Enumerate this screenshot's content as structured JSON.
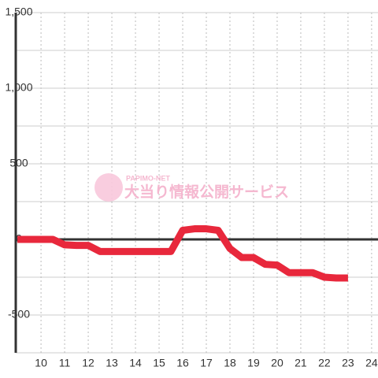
{
  "chart_data": {
    "type": "line",
    "watermark": {
      "brand": "PAPIMO-NET",
      "text": "大当り情報公開サービス"
    },
    "x": [
      9,
      9.5,
      10,
      10.5,
      11,
      11.5,
      12,
      12.5,
      13,
      13.5,
      14,
      14.5,
      15,
      15.5,
      16,
      16.5,
      17,
      17.5,
      18,
      18.5,
      19,
      19.5,
      20,
      20.5,
      21,
      21.5,
      22,
      22.5,
      23
    ],
    "series": [
      {
        "color": "#e8283c",
        "values": [
          0,
          0,
          0,
          0,
          -36,
          -40,
          -40,
          -80,
          -80,
          -80,
          -80,
          -80,
          -80,
          -80,
          60,
          70,
          70,
          60,
          -60,
          -120,
          -120,
          -165,
          -170,
          -220,
          -220,
          -220,
          -250,
          -255,
          -255
        ]
      }
    ],
    "xlim": [
      8.93,
      24.27
    ],
    "xticks": [
      10,
      11,
      12,
      13,
      14,
      15,
      16,
      17,
      18,
      19,
      20,
      21,
      22,
      23,
      24
    ],
    "ylim": [
      -750,
      1500
    ],
    "yticks": [
      {
        "value": 1500,
        "label": "1,500"
      },
      {
        "value": 1000,
        "label": "1,000"
      },
      500,
      0,
      -500
    ],
    "ygrid_minor": [
      1250,
      750,
      250,
      -250,
      -750
    ],
    "grid": true
  }
}
